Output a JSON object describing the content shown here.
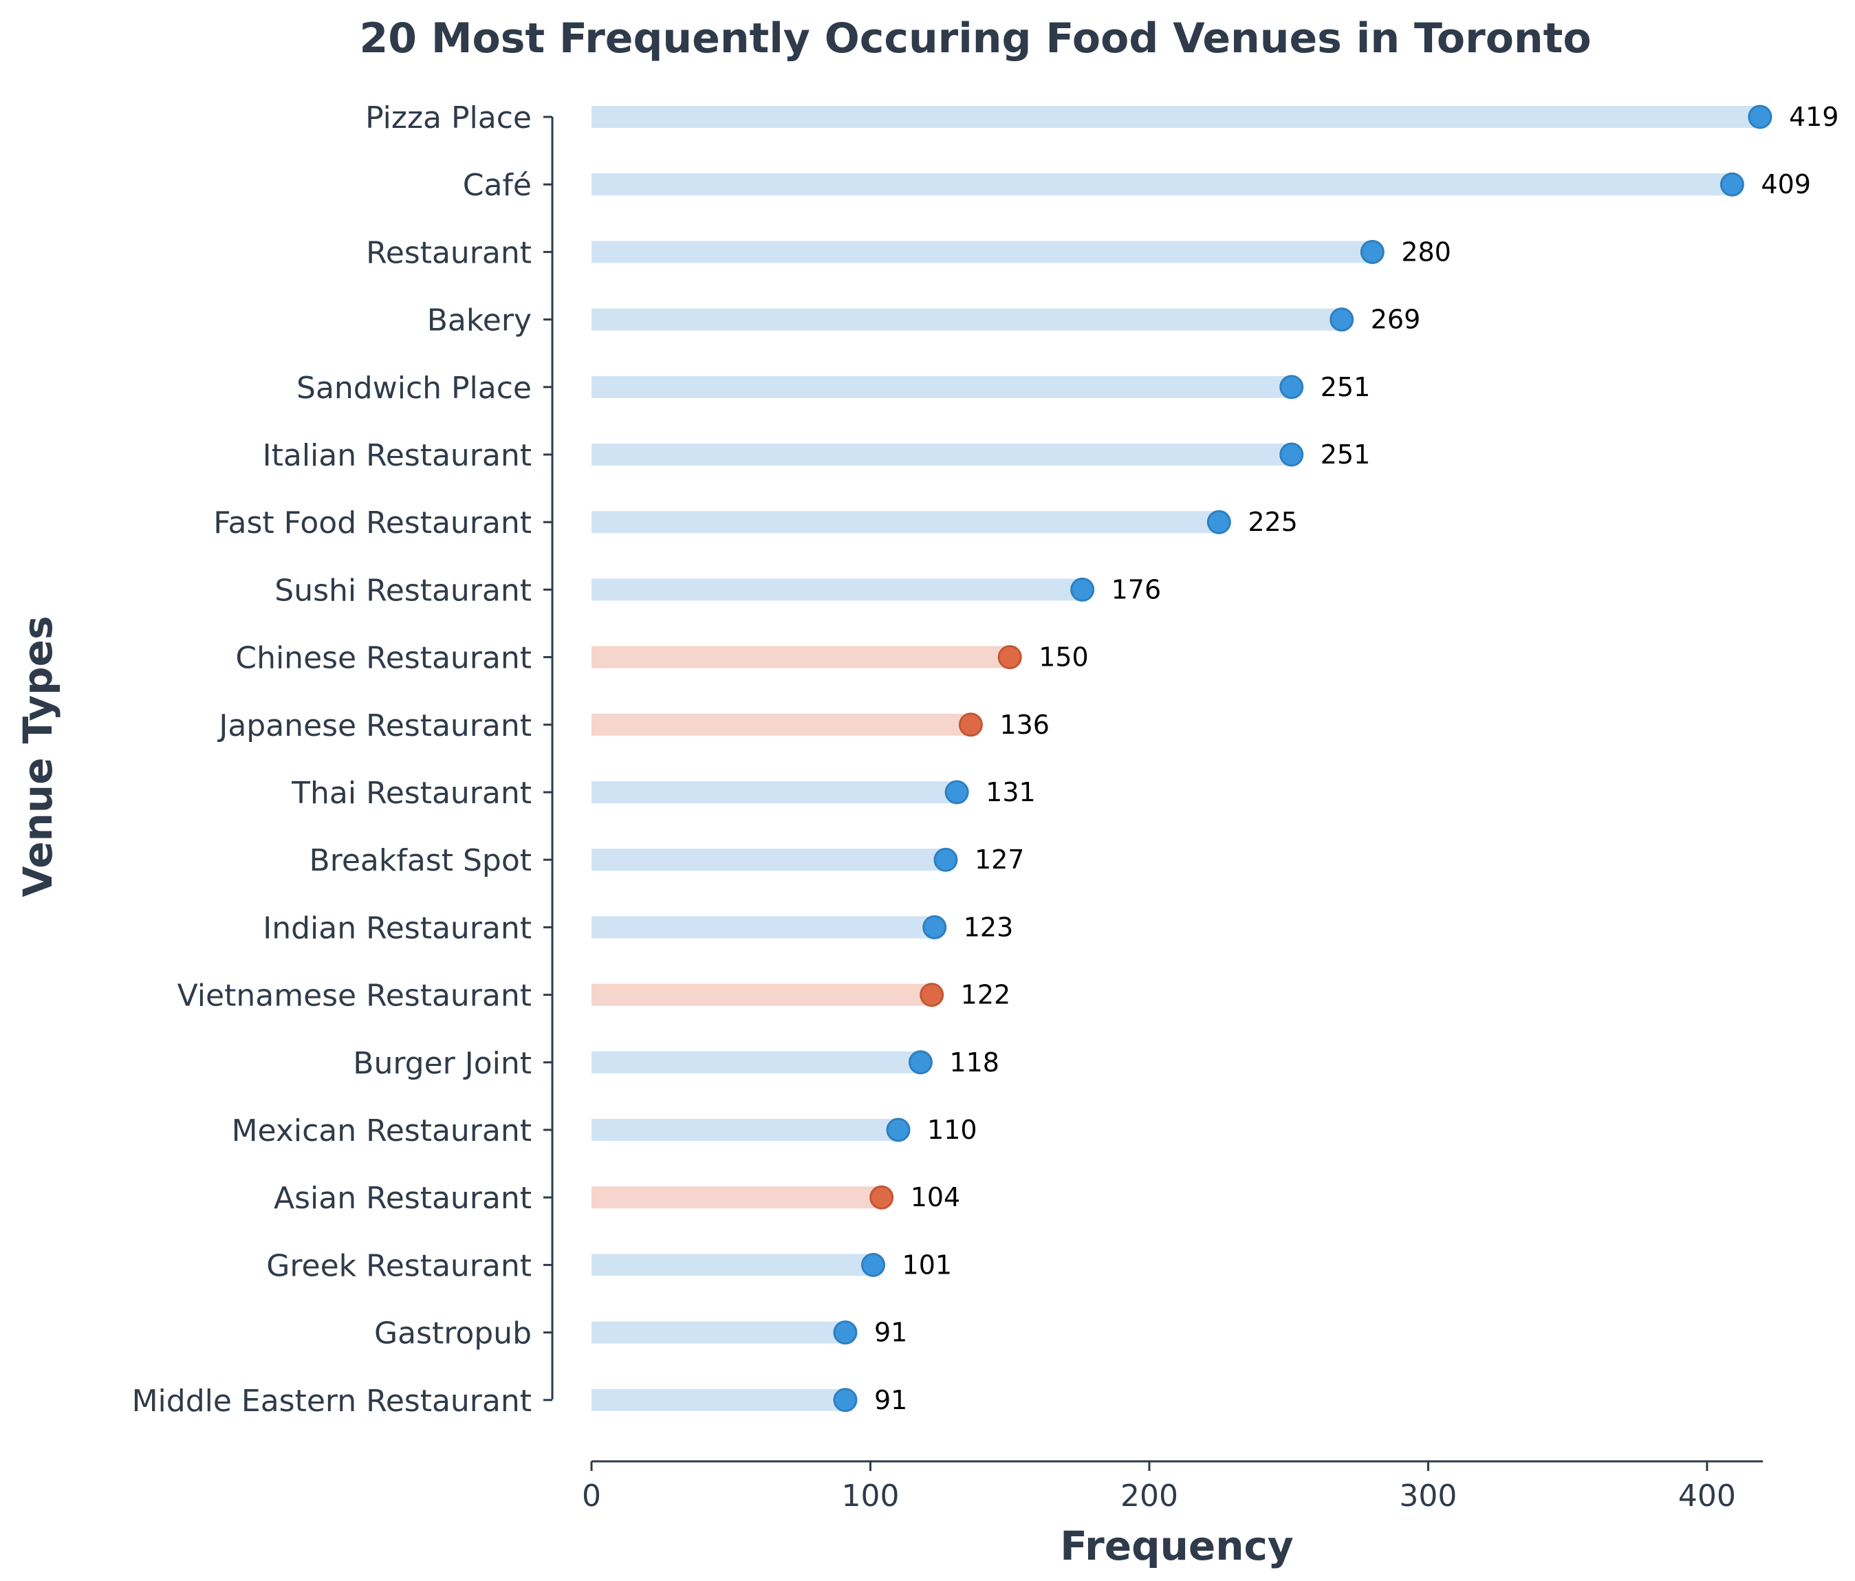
{
  "chart_data": {
    "type": "bar",
    "title": "20 Most Frequently Occuring Food Venues in Toronto",
    "xlabel": "Frequency",
    "ylabel": "Venue Types",
    "xlim": [
      0,
      420
    ],
    "x_ticks": [
      "0",
      "100",
      "200",
      "300",
      "400"
    ],
    "x_tick_values": [
      0,
      100,
      200,
      300,
      400
    ],
    "categories": [
      "Pizza Place",
      "Café",
      "Restaurant",
      "Bakery",
      "Sandwich Place",
      "Italian Restaurant",
      "Fast Food Restaurant",
      "Sushi Restaurant",
      "Chinese Restaurant",
      "Japanese Restaurant",
      "Thai Restaurant",
      "Breakfast Spot",
      "Indian Restaurant",
      "Vietnamese Restaurant",
      "Burger Joint",
      "Mexican Restaurant",
      "Asian Restaurant",
      "Greek Restaurant",
      "Gastropub",
      "Middle Eastern Restaurant"
    ],
    "values": [
      419,
      409,
      280,
      269,
      251,
      251,
      225,
      176,
      150,
      136,
      131,
      127,
      123,
      122,
      118,
      110,
      104,
      101,
      91,
      91
    ],
    "value_labels": [
      "419",
      "409",
      "280",
      "269",
      "251",
      "251",
      "225",
      "176",
      "150",
      "136",
      "131",
      "127",
      "123",
      "122",
      "118",
      "110",
      "104",
      "101",
      "91",
      "91"
    ],
    "highlight": [
      false,
      false,
      false,
      false,
      false,
      false,
      false,
      false,
      true,
      true,
      false,
      false,
      false,
      true,
      false,
      false,
      true,
      false,
      false,
      false
    ],
    "colors": {
      "default_bar": "#cfe3f4",
      "default_dot": "#3a95dc",
      "default_edge": "#2e7fc0",
      "highlight_bar": "#f5d5cc",
      "highlight_dot": "#dd6a45",
      "highlight_edge": "#c45535",
      "text": "#2f3b4a",
      "axis": "#2f3b4a"
    },
    "grid": false,
    "legend": "none"
  }
}
